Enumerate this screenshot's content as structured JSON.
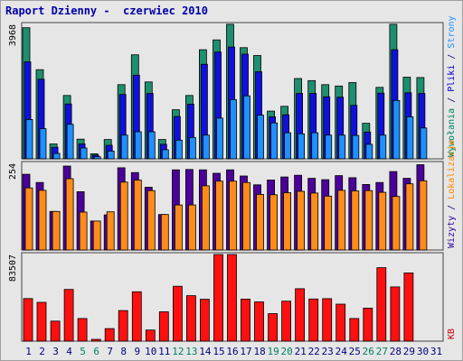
{
  "title": "Raport Dzienny -  czerwiec 2010",
  "chart_data": {
    "type": "bar",
    "days": [
      1,
      2,
      3,
      4,
      5,
      6,
      7,
      8,
      9,
      10,
      11,
      12,
      13,
      14,
      15,
      16,
      17,
      18,
      19,
      20,
      21,
      22,
      23,
      24,
      25,
      26,
      27,
      28,
      29,
      30,
      31
    ],
    "weekend_days": [
      5,
      6,
      12,
      13,
      19,
      20,
      26,
      27
    ],
    "panels": [
      {
        "name": "top",
        "max_label": "3968",
        "ymax": 3968,
        "right_label_parts": [
          {
            "text": "Wywołania",
            "color": "#008060"
          },
          {
            "text": " / ",
            "color": "#000080"
          },
          {
            "text": "Pliki",
            "color": "#0000cc"
          },
          {
            "text": " / ",
            "color": "#000080"
          },
          {
            "text": "Strony",
            "color": "#1e90ff"
          }
        ],
        "series": [
          {
            "name": "Wywołania",
            "color": "#1e8f6e",
            "values": [
              3870,
              2630,
              440,
              1870,
              580,
              150,
              570,
              2190,
              3070,
              2270,
              570,
              1450,
              1870,
              3220,
              3510,
              3970,
              3280,
              3050,
              1410,
              1550,
              2370,
              2310,
              2190,
              2150,
              2250,
              1050,
              2110,
              3970,
              2410,
              2400,
              0
            ]
          },
          {
            "name": "Pliki",
            "color": "#1010dd",
            "values": [
              2860,
              2350,
              340,
              1620,
              440,
              110,
              400,
              1900,
              2470,
              1930,
              430,
              1250,
              1610,
              2790,
              3150,
              3300,
              3090,
              2570,
              1240,
              1300,
              1930,
              1930,
              1830,
              1820,
              1580,
              790,
              1940,
              3220,
              1950,
              1930,
              0
            ]
          },
          {
            "name": "Strony",
            "color": "#1e90ff",
            "values": [
              1160,
              890,
              160,
              1020,
              320,
              60,
              230,
              700,
              800,
              800,
              270,
              550,
              630,
              700,
              1200,
              1750,
              1860,
              1290,
              1060,
              770,
              740,
              770,
              700,
              700,
              690,
              430,
              700,
              1720,
              1240,
              910,
              0
            ]
          }
        ]
      },
      {
        "name": "middle",
        "max_label": "254",
        "ymax": 254,
        "right_label_parts": [
          {
            "text": "Wizyty",
            "color": "#330099"
          },
          {
            "text": " / ",
            "color": "#000080"
          },
          {
            "text": "Lokalizacje",
            "color": "#ff8800"
          }
        ],
        "series": [
          {
            "name": "Wizyty",
            "color": "#4b0099",
            "values": [
              222,
              198,
              113,
              246,
              171,
              85,
              103,
              241,
              227,
              184,
              104,
              235,
              236,
              235,
              225,
              235,
              217,
              191,
              205,
              214,
              219,
              210,
              206,
              218,
              212,
              192,
              198,
              230,
              210,
              250,
              0
            ]
          },
          {
            "name": "Lokalizacje",
            "color": "#ff8c1a",
            "values": [
              182,
              175,
              113,
              209,
              111,
              85,
              112,
              199,
              205,
              174,
              104,
              132,
              132,
              188,
              202,
              202,
              198,
              163,
              162,
              168,
              172,
              167,
              158,
              175,
              173,
              174,
              169,
              157,
              194,
              203,
              0
            ]
          }
        ]
      },
      {
        "name": "bottom",
        "max_label": "83507",
        "ymax": 83507,
        "right_label_parts": [
          {
            "text": "KB",
            "color": "#cc0000"
          }
        ],
        "series": [
          {
            "name": "KB",
            "color": "#ff1010",
            "values": [
              41100,
              37400,
              19300,
              49800,
              21800,
              1700,
              12100,
              29500,
              47600,
              10700,
              28300,
              52900,
              43800,
              40400,
              83507,
              83507,
              40500,
              37800,
              26500,
              38500,
              50500,
              40600,
              41000,
              35700,
              21800,
              31800,
              70800,
              52300,
              65800,
              0,
              0
            ]
          }
        ]
      }
    ]
  }
}
